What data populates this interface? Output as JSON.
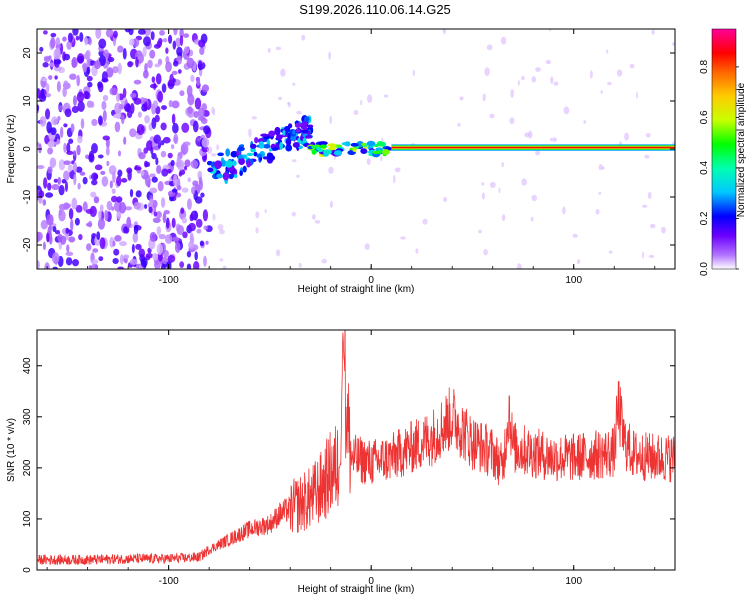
{
  "title": "S199.2026.110.06.14.G25",
  "chart_data": [
    {
      "type": "heatmap",
      "xlabel": "Height of straight line (km)",
      "ylabel": "Frequency (Hz)",
      "xlim": [
        -165,
        150
      ],
      "ylim": [
        -25,
        25
      ],
      "xticks": [
        -100,
        0,
        100
      ],
      "yticks": [
        -20,
        -10,
        0,
        10,
        20
      ],
      "xtick_labels": [
        "-100",
        "0",
        "100"
      ],
      "ytick_labels": [
        "-20",
        "-10",
        "0",
        "10",
        "20"
      ],
      "colorbar": {
        "label": "Normalized spectral amplitude",
        "range": [
          0,
          0.95
        ],
        "ticks": [
          0,
          0.2,
          0.4,
          0.6,
          0.8
        ],
        "tick_labels": [
          "0.0",
          "0.2",
          "0.4",
          "0.6",
          "0.8"
        ],
        "colormap": [
          "#ffffff",
          "#6a00ff",
          "#0000ff",
          "#00c8ff",
          "#00ff80",
          "#c8ff00",
          "#ffaa00",
          "#ff0000",
          "#ff00aa"
        ]
      },
      "features": [
        {
          "region": "noise",
          "x_range": [
            -165,
            -80
          ],
          "freq_range": [
            -25,
            25
          ],
          "amplitude": 0.05
        },
        {
          "region": "transition",
          "x_range": [
            -80,
            -30
          ],
          "freq_center_start": -5,
          "freq_center_end": 4,
          "amplitude": 0.25
        },
        {
          "region": "onset",
          "x_range": [
            -30,
            10
          ],
          "freq_center": 0,
          "amplitude": 0.5
        },
        {
          "region": "tone",
          "x_range": [
            10,
            150
          ],
          "freq_center": 0.3,
          "amplitude": 0.85
        }
      ]
    },
    {
      "type": "line",
      "xlabel": "Height of straight line (km)",
      "ylabel": "SNR (10 * v/v)",
      "xlim": [
        -165,
        150
      ],
      "ylim": [
        0,
        470
      ],
      "xticks": [
        -100,
        0,
        100
      ],
      "yticks": [
        0,
        100,
        200,
        300,
        400
      ],
      "xtick_labels": [
        "-100",
        "0",
        "100"
      ],
      "ytick_labels": [
        "0",
        "100",
        "200",
        "300",
        "400"
      ],
      "color": "#ee3333",
      "x": [
        -165,
        -140,
        -120,
        -100,
        -85,
        -80,
        -70,
        -60,
        -50,
        -45,
        -40,
        -30,
        -25,
        -20,
        -15,
        -14,
        -12,
        -10,
        0,
        10,
        20,
        30,
        35,
        40,
        50,
        60,
        65,
        68,
        70,
        80,
        90,
        100,
        110,
        120,
        122,
        125,
        130,
        140,
        150
      ],
      "y": [
        20,
        20,
        22,
        22,
        25,
        40,
        60,
        80,
        90,
        110,
        120,
        140,
        160,
        190,
        210,
        470,
        300,
        220,
        210,
        220,
        240,
        260,
        280,
        300,
        250,
        230,
        200,
        320,
        240,
        230,
        220,
        220,
        225,
        230,
        320,
        250,
        225,
        220,
        220
      ]
    }
  ]
}
